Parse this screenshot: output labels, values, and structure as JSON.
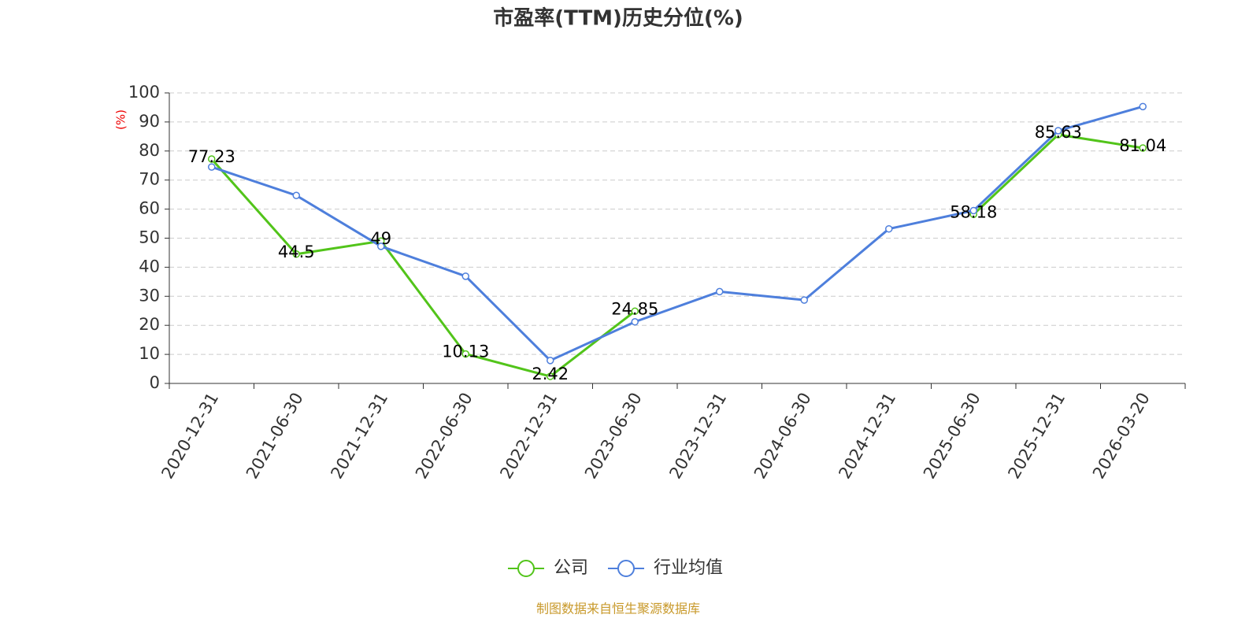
{
  "chart_data": {
    "type": "line",
    "title": "市盈率(TTM)历史分位(%)",
    "y_label": "(%)",
    "categories": [
      "2020-12-31",
      "2021-06-30",
      "2021-12-31",
      "2022-06-30",
      "2022-12-31",
      "2023-06-30",
      "2023-12-31",
      "2024-06-30",
      "2024-12-31",
      "2025-06-30",
      "2025-12-31",
      "2026-03-20"
    ],
    "series": [
      {
        "name": "公司",
        "color": "#52c41a",
        "values": [
          77.23,
          44.5,
          49,
          10.13,
          2.42,
          24.85,
          null,
          null,
          null,
          58.18,
          85.63,
          81.04
        ]
      },
      {
        "name": "行业均值",
        "color": "#4e7fdc",
        "values": [
          74.5,
          64.7,
          47.2,
          36.9,
          7.9,
          21.2,
          31.6,
          28.7,
          53.2,
          59.5,
          87.0,
          95.3
        ]
      }
    ],
    "ylim": [
      0,
      100
    ],
    "yticks": [
      0,
      10,
      20,
      30,
      40,
      50,
      60,
      70,
      80,
      90,
      100
    ],
    "grid": true,
    "source": "制图数据来自恒生聚源数据库"
  }
}
